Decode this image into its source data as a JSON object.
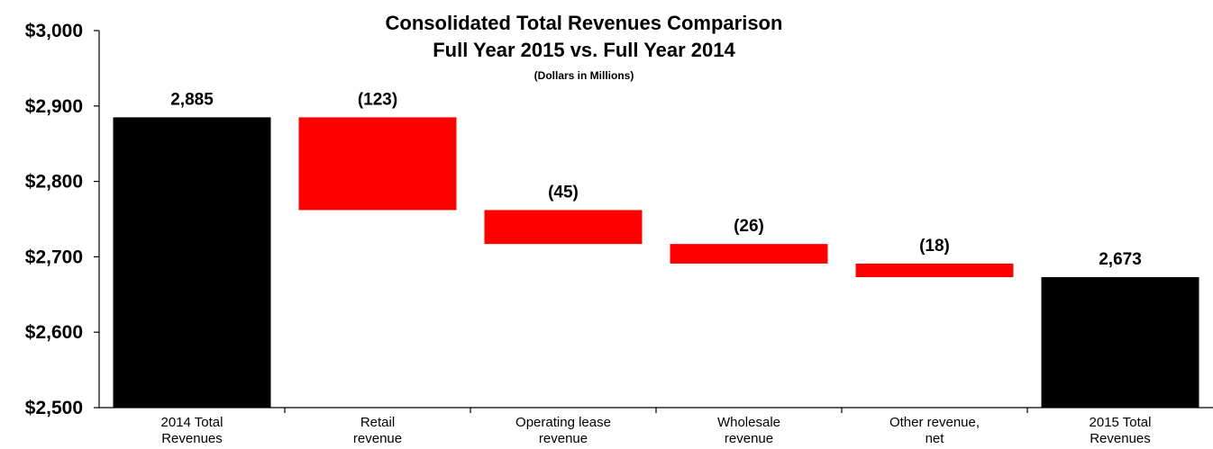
{
  "chart_data": {
    "type": "bar",
    "subtype": "waterfall",
    "title": "Consolidated Total Revenues Comparison",
    "subtitle": "Full Year 2015 vs. Full Year 2014",
    "unit_note": "(Dollars in Millions)",
    "categories": [
      [
        "2014 Total",
        "Revenues"
      ],
      [
        "Retail",
        "revenue"
      ],
      [
        "Operating lease",
        "revenue"
      ],
      [
        "Wholesale",
        "revenue"
      ],
      [
        "Other revenue,",
        "net"
      ],
      [
        "2015 Total",
        "Revenues"
      ]
    ],
    "values": [
      2885,
      -123,
      -45,
      -26,
      -18,
      2673
    ],
    "bar_kinds": [
      "total",
      "delta",
      "delta",
      "delta",
      "delta",
      "total"
    ],
    "data_labels": [
      "2,885",
      "(123)",
      "(45)",
      "(26)",
      "(18)",
      "2,673"
    ],
    "ylim": [
      2500,
      3000
    ],
    "yticks": [
      2500,
      2600,
      2700,
      2800,
      2900,
      3000
    ],
    "ytick_labels": [
      "$2,500",
      "$2,600",
      "$2,700",
      "$2,800",
      "$2,900",
      "$3,000"
    ],
    "grid": false,
    "colors": {
      "total": "#000000",
      "decrease": "#ff0000"
    }
  }
}
